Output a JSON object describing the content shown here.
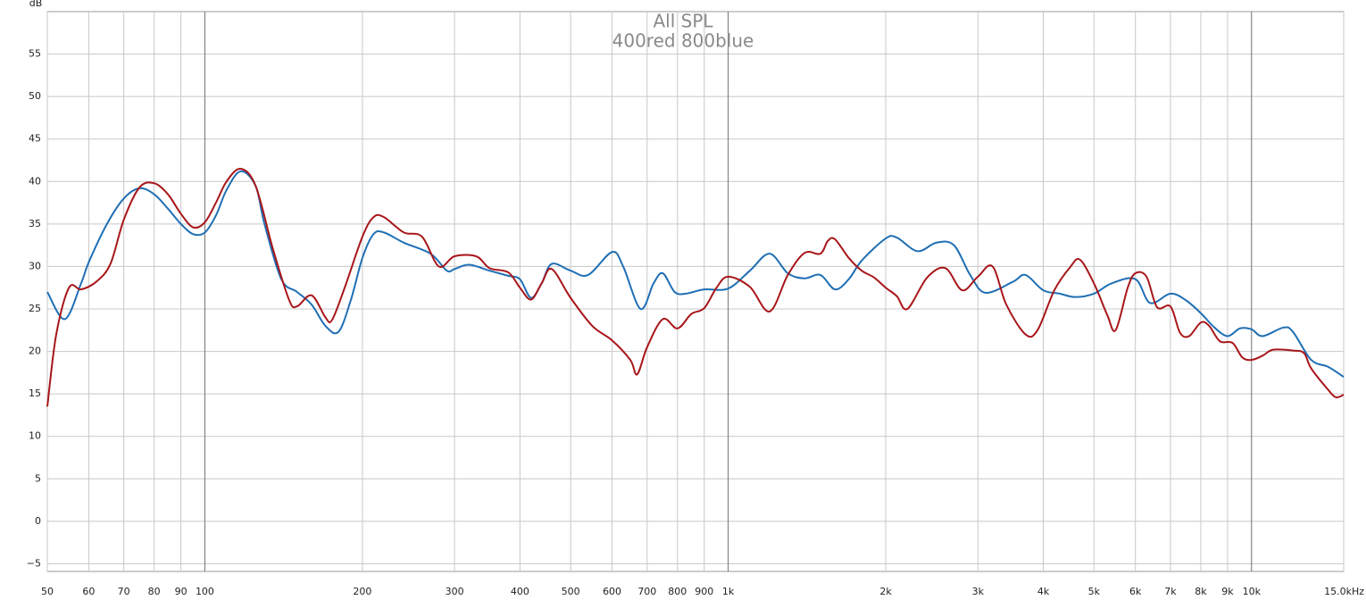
{
  "chart_data": {
    "type": "line",
    "title": "All SPL",
    "subtitle": "400red 800blue",
    "y_label": "dB",
    "x_log": true,
    "grid": true,
    "xlim": [
      50,
      15000
    ],
    "ylim": [
      -5.9,
      60
    ],
    "xticks": [
      50,
      60,
      70,
      80,
      90,
      100,
      200,
      300,
      400,
      500,
      600,
      700,
      800,
      900,
      {
        "value": 1000,
        "label": "1k"
      },
      {
        "value": 2000,
        "label": "2k"
      },
      {
        "value": 3000,
        "label": "3k"
      },
      {
        "value": 4000,
        "label": "4k"
      },
      {
        "value": 5000,
        "label": "5k"
      },
      {
        "value": 6000,
        "label": "6k"
      },
      {
        "value": 7000,
        "label": "7k"
      },
      {
        "value": 8000,
        "label": "8k"
      },
      {
        "value": 9000,
        "label": "9k"
      },
      {
        "value": 10000,
        "label": "10k"
      },
      {
        "value": 15000,
        "label": "15.0kHz"
      }
    ],
    "yticks": [
      {
        "value": -5,
        "label": "−5"
      },
      0,
      5,
      10,
      15,
      20,
      25,
      30,
      35,
      40,
      45,
      50,
      55
    ],
    "series": [
      {
        "name": "800",
        "color": "#1f6fb4",
        "x": [
          50,
          54,
          58,
          60,
          65,
          70,
          75,
          80,
          85,
          90,
          95,
          100,
          105,
          110,
          117,
          125,
          130,
          140,
          150,
          160,
          170,
          180,
          190,
          200,
          210,
          220,
          240,
          270,
          290,
          300,
          320,
          350,
          380,
          400,
          420,
          440,
          460,
          500,
          540,
          600,
          630,
          680,
          720,
          750,
          790,
          830,
          900,
          1000,
          1100,
          1200,
          1300,
          1400,
          1500,
          1600,
          1700,
          1800,
          2000,
          2100,
          2300,
          2500,
          2700,
          2900,
          3100,
          3500,
          3700,
          4000,
          4300,
          4600,
          5000,
          5400,
          6000,
          6400,
          7000,
          7500,
          8000,
          8500,
          9000,
          9500,
          10000,
          10500,
          11500,
          12000,
          13000,
          14000,
          15000
        ],
        "values": [
          27,
          23.8,
          28,
          30.5,
          35,
          38,
          39.2,
          38.5,
          36.8,
          35,
          33.8,
          34,
          36,
          39,
          41.2,
          39.5,
          35,
          28.5,
          27,
          25.5,
          23,
          22.3,
          26,
          31,
          33.8,
          34,
          32.8,
          31.5,
          29.5,
          29.7,
          30.2,
          29.5,
          28.9,
          28.5,
          26.3,
          28,
          30.3,
          29.5,
          29,
          31.7,
          30,
          25,
          28,
          29.2,
          27,
          26.8,
          27.3,
          27.4,
          29.5,
          31.5,
          29.2,
          28.6,
          29,
          27.3,
          28.5,
          30.7,
          33.3,
          33.4,
          31.8,
          32.8,
          32.5,
          29,
          26.9,
          28.2,
          29,
          27.2,
          26.8,
          26.4,
          26.8,
          28,
          28.5,
          25.7,
          26.8,
          26,
          24.5,
          22.8,
          21.8,
          22.7,
          22.6,
          21.8,
          22.8,
          22.3,
          19,
          18.2,
          17
        ]
      },
      {
        "name": "400",
        "color": "#a8161a",
        "x": [
          50,
          52,
          55,
          58,
          62,
          66,
          70,
          75,
          80,
          85,
          90,
          95,
          100,
          105,
          110,
          117,
          125,
          135,
          145,
          150,
          160,
          170,
          175,
          185,
          200,
          210,
          220,
          240,
          260,
          280,
          300,
          330,
          350,
          380,
          400,
          420,
          440,
          460,
          500,
          550,
          600,
          650,
          670,
          700,
          750,
          800,
          850,
          900,
          950,
          1000,
          1100,
          1200,
          1300,
          1400,
          1500,
          1550,
          1600,
          1700,
          1800,
          1900,
          2000,
          2100,
          2200,
          2400,
          2600,
          2800,
          3000,
          3200,
          3400,
          3700,
          3900,
          4200,
          4500,
          4700,
          5000,
          5300,
          5500,
          5800,
          6000,
          6300,
          6600,
          7000,
          7300,
          7600,
          8000,
          8300,
          8700,
          9200,
          9600,
          10000,
          10500,
          11000,
          12000,
          12600,
          13000,
          14000,
          14500,
          15000
        ],
        "values": [
          13.5,
          22,
          27.5,
          27.3,
          28.2,
          30.3,
          35.5,
          39.3,
          39.8,
          38.5,
          36.2,
          34.6,
          35.2,
          37.5,
          40,
          41.5,
          39.5,
          32,
          26,
          25.3,
          26.6,
          24,
          23.7,
          27.5,
          33.5,
          35.8,
          35.8,
          34,
          33.5,
          30,
          31.2,
          31.2,
          29.8,
          29.3,
          27.5,
          26.1,
          28,
          29.7,
          26.3,
          23,
          21.3,
          19,
          17.3,
          20.5,
          23.8,
          22.7,
          24.4,
          25.1,
          27.5,
          28.8,
          27.6,
          24.7,
          29,
          31.6,
          31.5,
          33,
          33.2,
          31,
          29.5,
          28.7,
          27.5,
          26.5,
          25,
          28.7,
          29.8,
          27.2,
          28.8,
          30,
          25.5,
          22,
          22.5,
          27.2,
          29.9,
          30.8,
          28,
          24.3,
          22.5,
          27.5,
          29.2,
          28.8,
          25.2,
          25.3,
          22.2,
          21.8,
          23.4,
          23,
          21.2,
          21,
          19.3,
          19,
          19.5,
          20.2,
          20.1,
          19.8,
          18,
          15.5,
          14.6,
          14.9
        ]
      }
    ]
  }
}
